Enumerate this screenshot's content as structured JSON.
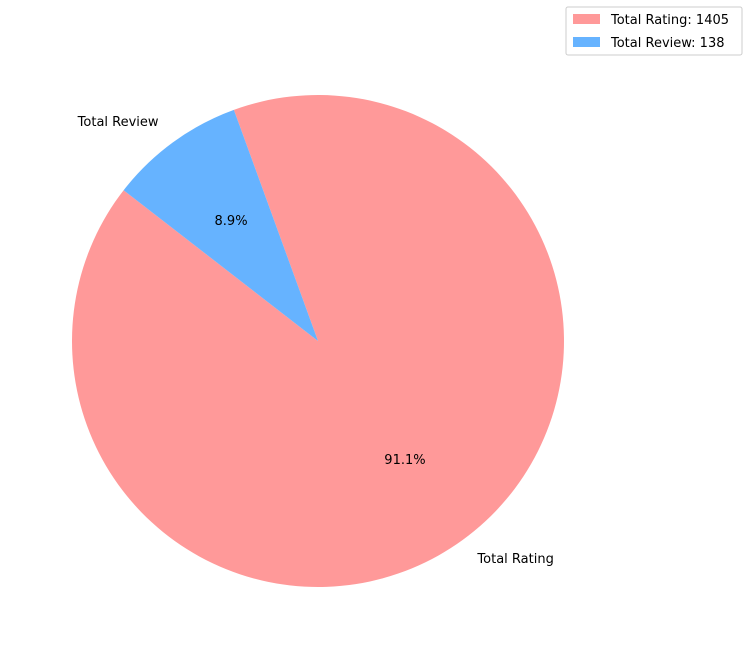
{
  "chart_data": {
    "type": "pie",
    "title": "",
    "labels": [
      "Total Rating",
      "Total Review"
    ],
    "values": [
      1405,
      138
    ],
    "percent_labels": [
      "91.1%",
      "8.9%"
    ],
    "colors": [
      "#ff9999",
      "#66b3ff"
    ],
    "legend": {
      "placement": "top-right",
      "entries": [
        "Total Rating: 1405",
        "Total Review: 138"
      ]
    }
  }
}
